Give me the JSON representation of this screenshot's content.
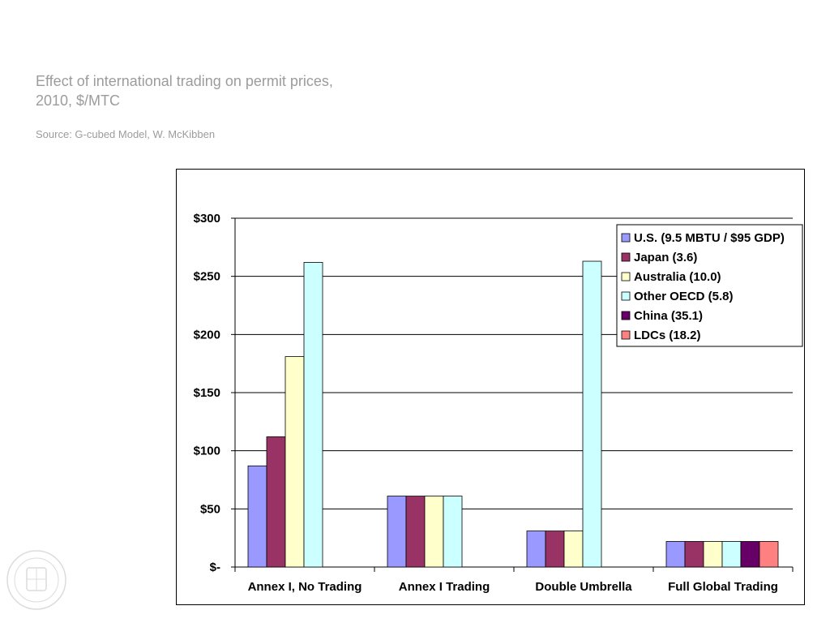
{
  "slide": {
    "title_line1": "Effect of international trading on permit prices,",
    "title_line2": "2010, $/MTC",
    "source": "Source:  G-cubed Model, W. McKibben"
  },
  "chart_data": {
    "type": "bar",
    "categories": [
      "Annex I, No Trading",
      "Annex I Trading",
      "Double Umbrella",
      "Full Global Trading"
    ],
    "series": [
      {
        "name": "U.S. (9.5 MBTU / $95 GDP)",
        "color": "#9999ff",
        "values": [
          87,
          61,
          31,
          22
        ]
      },
      {
        "name": "Japan (3.6)",
        "color": "#993366",
        "values": [
          112,
          61,
          31,
          22
        ]
      },
      {
        "name": "Australia (10.0)",
        "color": "#ffffcc",
        "values": [
          181,
          61,
          31,
          22
        ]
      },
      {
        "name": "Other OECD (5.8)",
        "color": "#ccffff",
        "values": [
          262,
          61,
          263,
          22
        ]
      },
      {
        "name": "China (35.1)",
        "color": "#660066",
        "values": [
          null,
          null,
          null,
          22
        ]
      },
      {
        "name": "LDCs (18.2)",
        "color": "#ff8080",
        "values": [
          null,
          null,
          null,
          22
        ]
      }
    ],
    "y_ticks": [
      {
        "value": 0,
        "label": "$-"
      },
      {
        "value": 50,
        "label": "$50"
      },
      {
        "value": 100,
        "label": "$100"
      },
      {
        "value": 150,
        "label": "$150"
      },
      {
        "value": 200,
        "label": "$200"
      },
      {
        "value": 250,
        "label": "$250"
      },
      {
        "value": 300,
        "label": "$300"
      }
    ],
    "ylim": [
      0,
      300
    ],
    "grid": true,
    "legend_position": "top-right"
  }
}
